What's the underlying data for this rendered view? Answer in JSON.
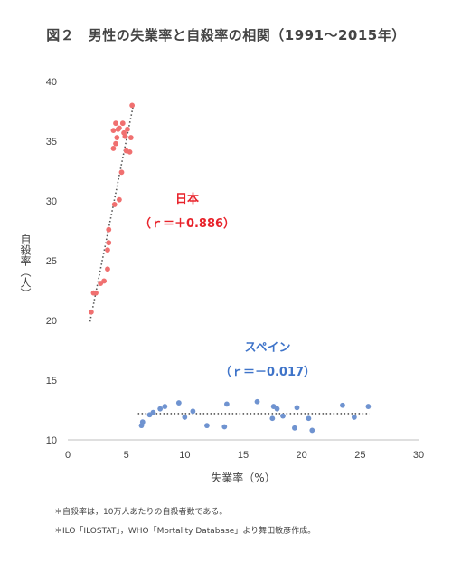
{
  "title": "図２　男性の失業率と自殺率の相関（1991〜2015年）",
  "notes": [
    "＊自殺率は，10万人あたりの自殺者数である。",
    "＊ILO「ILOSTAT」，WHO「Mortality Database」より舞田敏彦作成。"
  ],
  "chart_data": {
    "type": "scatter",
    "title": "図２　男性の失業率と自殺率の相関（1991〜2015年）",
    "xlabel": "失業率（%）",
    "ylabel": "自殺率（人）",
    "xlim": [
      0,
      30
    ],
    "ylim": [
      10,
      40
    ],
    "xticks": [
      "0",
      "5",
      "10",
      "15",
      "20",
      "25",
      "30"
    ],
    "yticks": [
      "10",
      "15",
      "20",
      "25",
      "30",
      "35",
      "40"
    ],
    "grid": false,
    "series": [
      {
        "name": "日本",
        "label_line1": "日本",
        "label_line2": "（ｒ＝＋0.886）",
        "color": "#f07070",
        "trendline": true,
        "trend_x": [
          1.9,
          5.6
        ],
        "trend_y": [
          19.9,
          38.0
        ],
        "points": [
          [
            2.0,
            20.7
          ],
          [
            2.2,
            22.3
          ],
          [
            2.4,
            22.3
          ],
          [
            2.8,
            23.1
          ],
          [
            3.1,
            23.3
          ],
          [
            3.4,
            24.3
          ],
          [
            3.4,
            25.9
          ],
          [
            3.5,
            26.5
          ],
          [
            3.5,
            27.6
          ],
          [
            4.0,
            29.7
          ],
          [
            4.4,
            30.1
          ],
          [
            4.6,
            32.4
          ],
          [
            3.9,
            34.4
          ],
          [
            4.1,
            34.8
          ],
          [
            4.2,
            35.3
          ],
          [
            3.9,
            35.9
          ],
          [
            4.3,
            36.0
          ],
          [
            4.1,
            36.5
          ],
          [
            4.4,
            36.1
          ],
          [
            4.7,
            36.5
          ],
          [
            4.8,
            35.7
          ],
          [
            4.9,
            35.4
          ],
          [
            5.1,
            36.0
          ],
          [
            5.0,
            34.2
          ],
          [
            5.3,
            34.1
          ],
          [
            5.4,
            35.3
          ],
          [
            5.5,
            38.0
          ]
        ]
      },
      {
        "name": "スペイン",
        "label_line1": "スペイン",
        "label_line2": "（ｒ＝－0.017）",
        "color": "#6f93d0",
        "trendline": true,
        "trend_x": [
          6.0,
          25.8
        ],
        "trend_y": [
          12.2,
          12.2
        ],
        "points": [
          [
            6.3,
            11.2
          ],
          [
            6.4,
            11.5
          ],
          [
            7.0,
            12.1
          ],
          [
            7.3,
            12.3
          ],
          [
            7.9,
            12.6
          ],
          [
            8.3,
            12.8
          ],
          [
            9.5,
            13.1
          ],
          [
            10.0,
            11.9
          ],
          [
            10.7,
            12.4
          ],
          [
            11.9,
            11.2
          ],
          [
            13.4,
            11.1
          ],
          [
            13.6,
            13.0
          ],
          [
            16.2,
            13.2
          ],
          [
            17.5,
            11.8
          ],
          [
            17.6,
            12.8
          ],
          [
            17.9,
            12.6
          ],
          [
            18.4,
            12.0
          ],
          [
            19.4,
            11.0
          ],
          [
            19.6,
            12.7
          ],
          [
            20.6,
            11.8
          ],
          [
            20.9,
            10.8
          ],
          [
            23.5,
            12.9
          ],
          [
            24.5,
            11.9
          ],
          [
            25.7,
            12.8
          ]
        ]
      }
    ]
  }
}
